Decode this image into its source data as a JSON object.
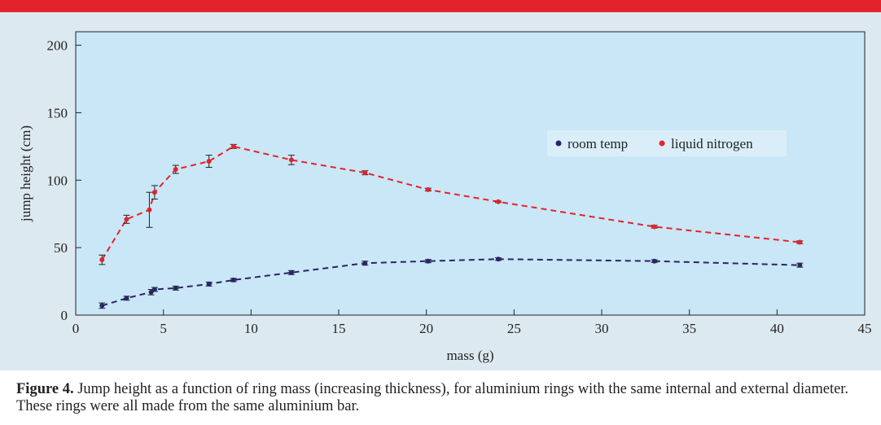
{
  "colors": {
    "top_bar": "#e3232c",
    "panel_bg": "#dde9f1",
    "plot_bg": "#c9e7f6",
    "room_temp": "#2a2468",
    "liquid_nitrogen": "#e3232c"
  },
  "caption": {
    "label": "Figure 4.",
    "text": " Jump height as a function of ring mass (increasing thickness), for aluminium rings with the same internal and external diameter. These rings were all made from the same aluminium bar."
  },
  "chart_data": {
    "type": "scatter",
    "xlabel": "mass (g)",
    "ylabel": "jump height (cm)",
    "xlim": [
      0,
      45
    ],
    "ylim": [
      0,
      210
    ],
    "xticks": [
      0,
      5,
      10,
      15,
      20,
      25,
      30,
      35,
      40,
      45
    ],
    "yticks": [
      0,
      50,
      100,
      150,
      200
    ],
    "grid": false,
    "legend_position": "right",
    "series": [
      {
        "name": "room temp",
        "color": "#2a2468",
        "line": "dashed",
        "points": [
          {
            "x": 1.5,
            "y": 7,
            "err": 2
          },
          {
            "x": 2.9,
            "y": 12.5,
            "err": 1.5
          },
          {
            "x": 4.3,
            "y": 17,
            "err": 2
          },
          {
            "x": 4.5,
            "y": 19,
            "err": 1.5
          },
          {
            "x": 5.7,
            "y": 20,
            "err": 1.5
          },
          {
            "x": 7.6,
            "y": 23,
            "err": 1.5
          },
          {
            "x": 9,
            "y": 26,
            "err": 1.2
          },
          {
            "x": 12.3,
            "y": 31.5,
            "err": 1.5
          },
          {
            "x": 16.5,
            "y": 38.5,
            "err": 1.5
          },
          {
            "x": 20.1,
            "y": 40,
            "err": 1.2
          },
          {
            "x": 24.1,
            "y": 41.5,
            "err": 1
          },
          {
            "x": 33,
            "y": 40,
            "err": 1
          },
          {
            "x": 41.3,
            "y": 37,
            "err": 1.5
          }
        ]
      },
      {
        "name": "liquid nitrogen",
        "color": "#e3232c",
        "line": "dashed",
        "points": [
          {
            "x": 1.5,
            "y": 41,
            "err": 3.5
          },
          {
            "x": 2.9,
            "y": 71,
            "err": 3
          },
          {
            "x": 4.2,
            "y": 78,
            "err": 13
          },
          {
            "x": 4.5,
            "y": 91,
            "err": 5
          },
          {
            "x": 5.7,
            "y": 108,
            "err": 3
          },
          {
            "x": 7.6,
            "y": 114,
            "err": 4.5
          },
          {
            "x": 9,
            "y": 125,
            "err": 1.5
          },
          {
            "x": 12.3,
            "y": 115,
            "err": 3.5
          },
          {
            "x": 16.5,
            "y": 105.5,
            "err": 1.5
          },
          {
            "x": 20.1,
            "y": 93,
            "err": 1
          },
          {
            "x": 24.1,
            "y": 84,
            "err": 0.5
          },
          {
            "x": 33,
            "y": 65.5,
            "err": 1
          },
          {
            "x": 41.3,
            "y": 54,
            "err": 1
          }
        ]
      }
    ]
  }
}
